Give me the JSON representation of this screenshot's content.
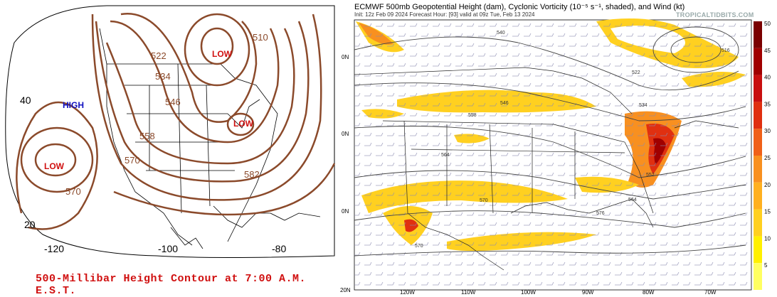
{
  "left_map": {
    "caption": "500-Millibar Height Contour at 7:00 A.M. E.S.T.",
    "pressure_labels": {
      "high": "HIGH",
      "low_west": "LOW",
      "low_north": "LOW",
      "low_east": "LOW"
    },
    "contour_labels": [
      "510",
      "522",
      "534",
      "546",
      "558",
      "570",
      "582",
      "570"
    ],
    "lat_labels": [
      "40",
      "20"
    ],
    "lon_labels": [
      "-120",
      "-100",
      "-80"
    ],
    "colors": {
      "contour": "#8b4a2b",
      "high": "#1010c0",
      "low": "#d01010",
      "caption": "#d01010"
    }
  },
  "right_map": {
    "title": "ECMWF 500mb Geopotential Height (dam), Cyclonic Vorticity (10⁻⁵ s⁻¹, shaded), and Wind (kt)",
    "subtitle": "Init: 12z Feb 09 2024   Forecast Hour: [93]   valid at 09z Tue, Feb 13 2024",
    "brand": "TROPICALTIDBITS.COM",
    "lat_labels": [
      "0N",
      "0N",
      "0N",
      "20N"
    ],
    "lon_labels": [
      "120W",
      "110W",
      "100W",
      "90W",
      "80W",
      "70W"
    ],
    "contour_labels": [
      "540",
      "516",
      "522",
      "534",
      "546",
      "558",
      "564",
      "570",
      "552",
      "564",
      "570",
      "576"
    ],
    "colorbar": {
      "ticks": [
        "50",
        "45",
        "40",
        "35",
        "30",
        "25",
        "20",
        "15",
        "10",
        "5"
      ],
      "colors": [
        "#7a0000",
        "#a00000",
        "#c81010",
        "#e03010",
        "#f06018",
        "#f89020",
        "#ffb020",
        "#ffd020",
        "#fff000",
        "#ffff60"
      ]
    }
  }
}
